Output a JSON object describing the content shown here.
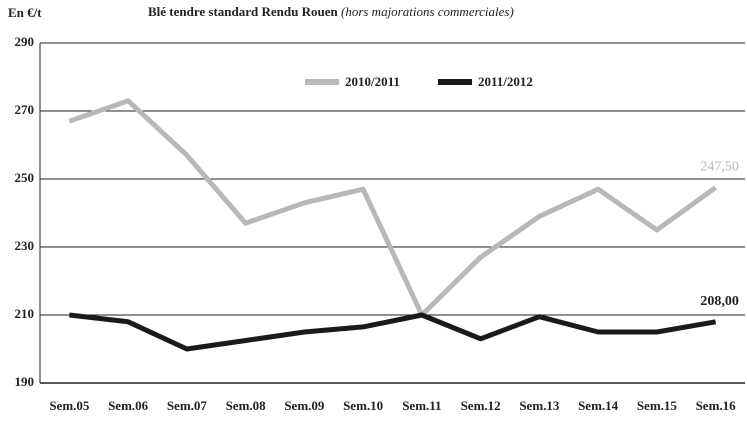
{
  "chart_data": {
    "type": "line",
    "title": "Blé tendre standard Rendu Rouen",
    "subtitle": "(hors majorations commerciales)",
    "y_label": "En €/t",
    "categories": [
      "Sem.05",
      "Sem.06",
      "Sem.07",
      "Sem.08",
      "Sem.09",
      "Sem.10",
      "Sem.11",
      "Sem.12",
      "Sem.13",
      "Sem.14",
      "Sem.15",
      "Sem.16"
    ],
    "series": [
      {
        "name": "2010/2011",
        "color": "#b8b8b8",
        "values": [
          267,
          273,
          257,
          237,
          243,
          247,
          210,
          227,
          239,
          247,
          235,
          247.5
        ],
        "value_labels": [
          null,
          null,
          null,
          null,
          null,
          null,
          null,
          null,
          null,
          null,
          null,
          "247,50"
        ]
      },
      {
        "name": "2011/2012",
        "color": "#1a1a1a",
        "values": [
          210,
          208,
          200,
          202.5,
          205,
          206.5,
          210,
          203,
          209.5,
          205,
          205,
          208
        ],
        "value_labels": [
          null,
          null,
          null,
          null,
          null,
          null,
          null,
          null,
          null,
          null,
          null,
          "208,00"
        ]
      }
    ],
    "ylim": [
      190,
      290
    ],
    "yticks": [
      190,
      210,
      230,
      250,
      270,
      290
    ],
    "grid": true
  }
}
